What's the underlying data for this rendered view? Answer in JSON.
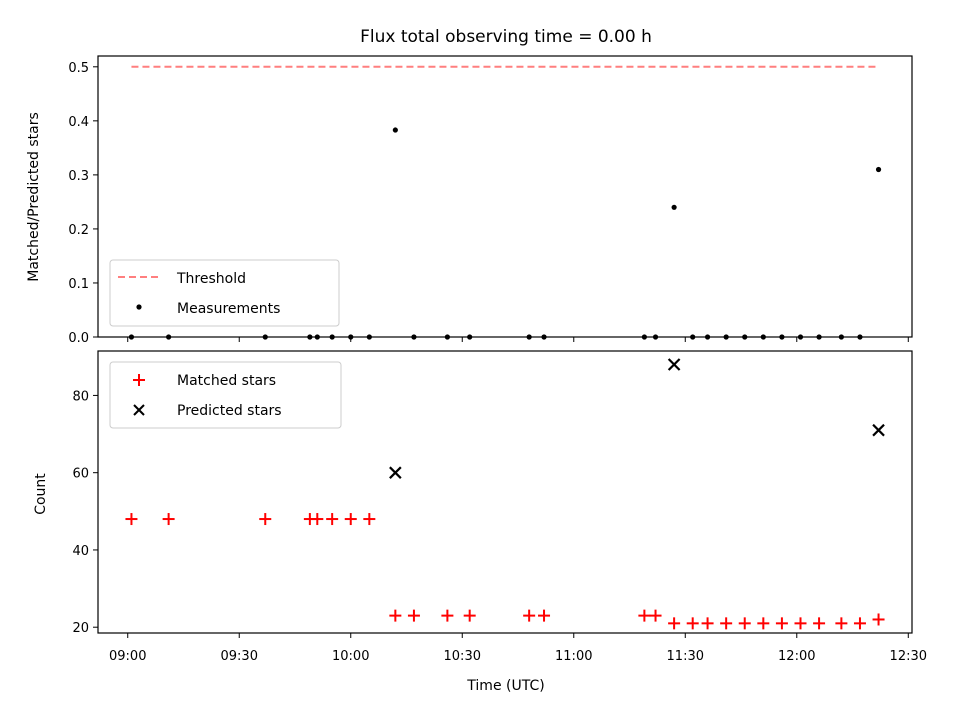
{
  "chart_data": [
    {
      "type": "scatter",
      "title": "Flux total observing time = 0.00 h",
      "xlabel": "",
      "ylabel": "Matched/Predicted stars",
      "ylim": [
        0,
        0.52
      ],
      "yticks": [
        "0.0",
        "0.1",
        "0.2",
        "0.3",
        "0.4",
        "0.5"
      ],
      "legend_position": "lower-left",
      "threshold": {
        "name": "Threshold",
        "value": 0.5,
        "x_start": "09:01",
        "x_end": "12:22",
        "color": "#ff7f7f",
        "style": "dashed"
      },
      "series": [
        {
          "name": "Measurements",
          "color": "#000000",
          "marker": "dot",
          "points": [
            {
              "x": "09:01",
              "y": 0
            },
            {
              "x": "09:11",
              "y": 0
            },
            {
              "x": "09:37",
              "y": 0
            },
            {
              "x": "09:49",
              "y": 0
            },
            {
              "x": "09:51",
              "y": 0
            },
            {
              "x": "09:55",
              "y": 0
            },
            {
              "x": "10:00",
              "y": 0
            },
            {
              "x": "10:05",
              "y": 0
            },
            {
              "x": "10:12",
              "y": 0.383
            },
            {
              "x": "10:17",
              "y": 0
            },
            {
              "x": "10:26",
              "y": 0
            },
            {
              "x": "10:32",
              "y": 0
            },
            {
              "x": "10:48",
              "y": 0
            },
            {
              "x": "10:52",
              "y": 0
            },
            {
              "x": "11:19",
              "y": 0
            },
            {
              "x": "11:22",
              "y": 0
            },
            {
              "x": "11:27",
              "y": 0.24
            },
            {
              "x": "11:32",
              "y": 0
            },
            {
              "x": "11:36",
              "y": 0
            },
            {
              "x": "11:41",
              "y": 0
            },
            {
              "x": "11:46",
              "y": 0
            },
            {
              "x": "11:51",
              "y": 0
            },
            {
              "x": "11:56",
              "y": 0
            },
            {
              "x": "12:01",
              "y": 0
            },
            {
              "x": "12:06",
              "y": 0
            },
            {
              "x": "12:12",
              "y": 0
            },
            {
              "x": "12:17",
              "y": 0
            },
            {
              "x": "12:22",
              "y": 0.31
            }
          ]
        }
      ]
    },
    {
      "type": "scatter",
      "title": "",
      "xlabel": "Time (UTC)",
      "ylabel": "Count",
      "ylim": [
        18.5,
        91.5
      ],
      "yticks": [
        "20",
        "40",
        "60",
        "80"
      ],
      "xlim": [
        "08:52",
        "12:31"
      ],
      "xticks": [
        "09:00",
        "09:30",
        "10:00",
        "10:30",
        "11:00",
        "11:30",
        "12:00",
        "12:30"
      ],
      "legend_position": "upper-left",
      "series": [
        {
          "name": "Matched stars",
          "color": "#ff0000",
          "marker": "plus",
          "points": [
            {
              "x": "09:01",
              "y": 48
            },
            {
              "x": "09:11",
              "y": 48
            },
            {
              "x": "09:37",
              "y": 48
            },
            {
              "x": "09:49",
              "y": 48
            },
            {
              "x": "09:51",
              "y": 48
            },
            {
              "x": "09:55",
              "y": 48
            },
            {
              "x": "10:00",
              "y": 48
            },
            {
              "x": "10:05",
              "y": 48
            },
            {
              "x": "10:12",
              "y": 23
            },
            {
              "x": "10:17",
              "y": 23
            },
            {
              "x": "10:26",
              "y": 23
            },
            {
              "x": "10:32",
              "y": 23
            },
            {
              "x": "10:48",
              "y": 23
            },
            {
              "x": "10:52",
              "y": 23
            },
            {
              "x": "11:19",
              "y": 23
            },
            {
              "x": "11:22",
              "y": 23
            },
            {
              "x": "11:27",
              "y": 21
            },
            {
              "x": "11:32",
              "y": 21
            },
            {
              "x": "11:36",
              "y": 21
            },
            {
              "x": "11:41",
              "y": 21
            },
            {
              "x": "11:46",
              "y": 21
            },
            {
              "x": "11:51",
              "y": 21
            },
            {
              "x": "11:56",
              "y": 21
            },
            {
              "x": "12:01",
              "y": 21
            },
            {
              "x": "12:06",
              "y": 21
            },
            {
              "x": "12:12",
              "y": 21
            },
            {
              "x": "12:17",
              "y": 21
            },
            {
              "x": "12:22",
              "y": 22
            }
          ]
        },
        {
          "name": "Predicted stars",
          "color": "#000000",
          "marker": "x",
          "points": [
            {
              "x": "10:12",
              "y": 60
            },
            {
              "x": "11:27",
              "y": 88
            },
            {
              "x": "12:22",
              "y": 71
            }
          ]
        }
      ]
    }
  ]
}
